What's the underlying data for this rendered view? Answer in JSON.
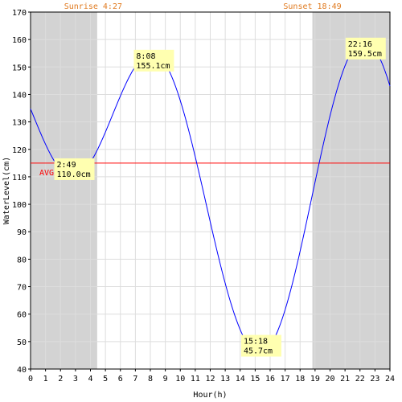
{
  "chart_data": {
    "type": "line",
    "xlabel": "Hour(h)",
    "ylabel": "WaterLevel(cm)",
    "xlim": [
      0,
      24
    ],
    "ylim": [
      40,
      170
    ],
    "xticks": [
      0,
      1,
      2,
      3,
      4,
      5,
      6,
      7,
      8,
      9,
      10,
      11,
      12,
      13,
      14,
      15,
      16,
      17,
      18,
      19,
      20,
      21,
      22,
      23,
      24
    ],
    "yticks": [
      40,
      50,
      60,
      70,
      80,
      90,
      100,
      110,
      120,
      130,
      140,
      150,
      160,
      170
    ],
    "grid": true,
    "sunrise": {
      "label": "Sunrise 4:27",
      "hour": 4.45
    },
    "sunset": {
      "label": "Sunset 18:49",
      "hour": 18.82
    },
    "average": {
      "label": "AVG 115cm",
      "value": 115
    },
    "extremes": [
      {
        "time": "2:49",
        "level": "110.0cm",
        "hour": 2.82,
        "value": 110.0
      },
      {
        "time": "8:08",
        "level": "155.1cm",
        "hour": 8.13,
        "value": 155.1
      },
      {
        "time": "15:18",
        "level": "45.7cm",
        "hour": 15.3,
        "value": 45.7
      },
      {
        "time": "22:16",
        "level": "159.5cm",
        "hour": 22.27,
        "value": 159.5
      }
    ],
    "series": [
      {
        "color": "#0000ff",
        "x": [
          0,
          24
        ],
        "start_value": 139,
        "end_value": 147.5
      }
    ],
    "night_color": "#d3d3d3",
    "avg_color": "#ff0000",
    "grid_color": "#dddddd"
  }
}
